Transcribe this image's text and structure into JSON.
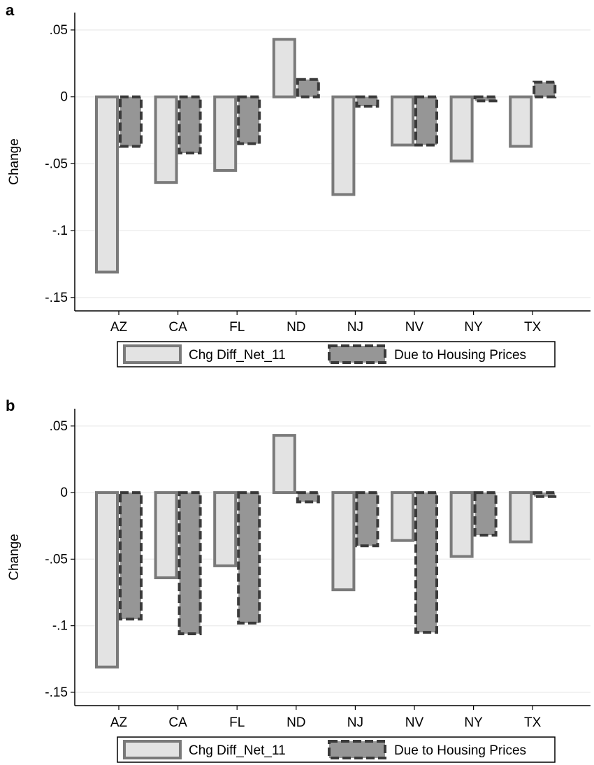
{
  "colors": {
    "series1_fill": "#e3e3e3",
    "series1_stroke": "#7a7a7a",
    "series2_fill": "#969696",
    "series2_stroke": "#3a3a3a",
    "gridline": "#eeeeee",
    "axis": "#000000"
  },
  "chart_data": [
    {
      "panel_label": "a",
      "type": "bar",
      "ylabel": "Change",
      "categories": [
        "AZ",
        "CA",
        "FL",
        "ND",
        "NJ",
        "NV",
        "NY",
        "TX"
      ],
      "yticks": [
        0.05,
        0,
        -0.05,
        -0.1,
        -0.15
      ],
      "ytick_labels": [
        ".05",
        "0",
        "-.05",
        "-.1",
        "-.15"
      ],
      "ylim": [
        -0.16,
        0.063
      ],
      "grid": true,
      "legend_position": "bottom",
      "series": [
        {
          "name": "Chg Diff_Net_11",
          "values": [
            -0.131,
            -0.064,
            -0.055,
            0.043,
            -0.073,
            -0.036,
            -0.048,
            -0.037
          ]
        },
        {
          "name": "Due to Housing Prices",
          "values": [
            -0.037,
            -0.042,
            -0.035,
            0.013,
            -0.007,
            -0.036,
            -0.003,
            0.011
          ]
        }
      ]
    },
    {
      "panel_label": "b",
      "type": "bar",
      "ylabel": "Change",
      "categories": [
        "AZ",
        "CA",
        "FL",
        "ND",
        "NJ",
        "NV",
        "NY",
        "TX"
      ],
      "yticks": [
        0.05,
        0,
        -0.05,
        -0.1,
        -0.15
      ],
      "ytick_labels": [
        ".05",
        "0",
        "-.05",
        "-.1",
        "-.15"
      ],
      "ylim": [
        -0.16,
        0.063
      ],
      "grid": true,
      "legend_position": "bottom",
      "series": [
        {
          "name": "Chg Diff_Net_11",
          "values": [
            -0.131,
            -0.064,
            -0.055,
            0.043,
            -0.073,
            -0.036,
            -0.048,
            -0.037
          ]
        },
        {
          "name": "Due to Housing Prices",
          "values": [
            -0.095,
            -0.106,
            -0.098,
            -0.007,
            -0.04,
            -0.105,
            -0.032,
            -0.003
          ]
        }
      ]
    }
  ]
}
